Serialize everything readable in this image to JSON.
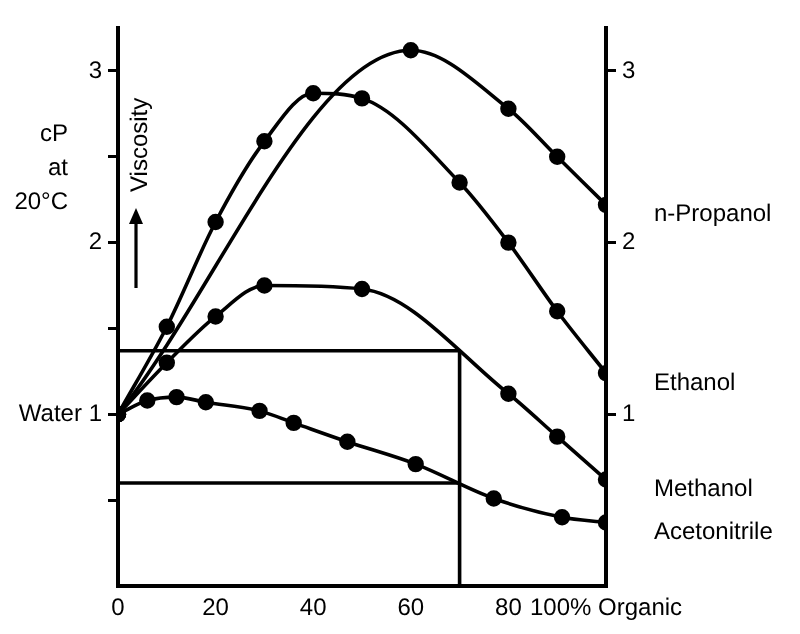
{
  "chart_data": {
    "type": "line",
    "ylabel": "cP\nat\n20°C",
    "xlim": [
      0,
      100
    ],
    "xticks": [
      0,
      20,
      40,
      60,
      80,
      {
        "value": 100,
        "label": "100% Organic"
      }
    ],
    "ylim": [
      0,
      3.25
    ],
    "yticks": [
      {
        "value": 0.5,
        "label": null
      },
      {
        "value": 1,
        "label": "Water 1"
      },
      {
        "value": 1.5,
        "label": null
      },
      2,
      {
        "value": 2.5,
        "label": null
      },
      3
    ],
    "y2lim": [
      0,
      3.25
    ],
    "y2ticks": [
      1,
      2,
      3
    ],
    "annotations": [
      "Viscosity"
    ],
    "grid": false,
    "legend": false,
    "marker": "circle",
    "line_style": "solid",
    "series": [
      {
        "name": "n-Propanol",
        "color": "#000000",
        "x": [
          0,
          60,
          80,
          90,
          100
        ],
        "values": [
          1,
          3.12,
          2.78,
          2.5,
          2.22
        ]
      },
      {
        "name": "Ethanol",
        "color": "#000000",
        "x": [
          0,
          10,
          20,
          30,
          40,
          50,
          70,
          80,
          90,
          100
        ],
        "values": [
          1,
          1.51,
          2.12,
          2.59,
          2.87,
          2.84,
          2.35,
          2.0,
          1.6,
          1.24
        ]
      },
      {
        "name": "Methanol",
        "color": "#000000",
        "x": [
          0,
          10,
          20,
          30,
          50,
          80,
          90,
          100
        ],
        "values": [
          1,
          1.3,
          1.57,
          1.75,
          1.73,
          1.12,
          0.87,
          0.62
        ]
      },
      {
        "name": "Acetonitrile",
        "color": "#000000",
        "x": [
          0,
          6,
          12,
          18,
          29,
          36,
          47,
          61,
          77,
          91,
          100
        ],
        "values": [
          1,
          1.08,
          1.1,
          1.07,
          1.02,
          0.95,
          0.84,
          0.71,
          0.51,
          0.4,
          0.37
        ]
      },
      {
        "color": "#000000",
        "marker": "none",
        "x": [
          0,
          70,
          70
        ],
        "values": [
          1.37,
          1.37,
          0
        ]
      },
      {
        "color": "#000000",
        "marker": "none",
        "x": [
          0,
          70
        ],
        "values": [
          0.6,
          0.6
        ]
      }
    ]
  }
}
